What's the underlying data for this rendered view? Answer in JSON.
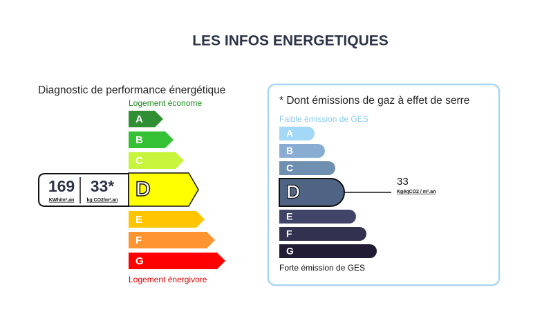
{
  "header": {
    "title": "LES INFOS ENERGETIQUES"
  },
  "dpe": {
    "title": "Diagnostic de performance énergétique",
    "top_label": "Logement économe",
    "bottom_label": "Logement énergivore",
    "active": "D",
    "energy_value": "169",
    "energy_unit": "KWh/m².an",
    "ges_value": "33*",
    "ges_unit": "kg CO2/m².an",
    "classes": [
      {
        "letter": "A",
        "color": "#2f8f32"
      },
      {
        "letter": "B",
        "color": "#35c134"
      },
      {
        "letter": "C",
        "color": "#c7f53c"
      },
      {
        "letter": "D",
        "color": "#ffff00"
      },
      {
        "letter": "E",
        "color": "#ffc600"
      },
      {
        "letter": "F",
        "color": "#ff9530"
      },
      {
        "letter": "G",
        "color": "#ff0000"
      }
    ]
  },
  "ges": {
    "title": "* Dont émissions de gaz à effet de serre",
    "top_label": "Faible émission de GES",
    "bottom_label": "Forte émission de GES",
    "active": "D",
    "value": "33",
    "unit": "KgéqCO2 / m².an",
    "classes": [
      {
        "letter": "A",
        "color": "#a3d8f7"
      },
      {
        "letter": "B",
        "color": "#89add2"
      },
      {
        "letter": "C",
        "color": "#6f8fb0"
      },
      {
        "letter": "D",
        "color": "#4f6484"
      },
      {
        "letter": "E",
        "color": "#404468"
      },
      {
        "letter": "F",
        "color": "#323250"
      },
      {
        "letter": "G",
        "color": "#221b34"
      }
    ]
  }
}
